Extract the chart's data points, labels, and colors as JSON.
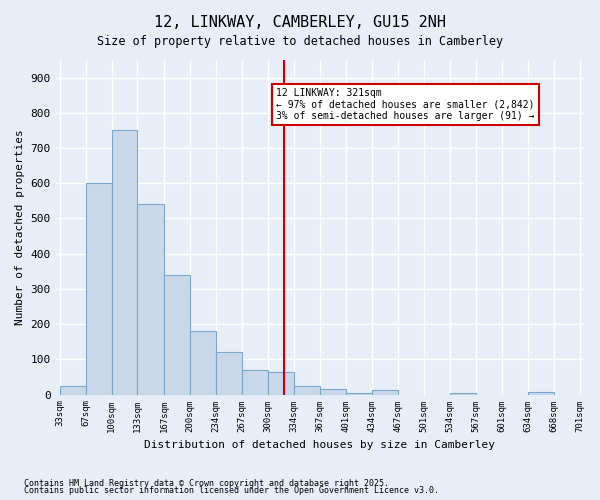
{
  "title": "12, LINKWAY, CAMBERLEY, GU15 2NH",
  "subtitle": "Size of property relative to detached houses in Camberley",
  "xlabel": "Distribution of detached houses by size in Camberley",
  "ylabel": "Number of detached properties",
  "footnote1": "Contains HM Land Registry data © Crown copyright and database right 2025.",
  "footnote2": "Contains public sector information licensed under the Open Government Licence v3.0.",
  "annotation_title": "12 LINKWAY: 321sqm",
  "annotation_line1": "← 97% of detached houses are smaller (2,842)",
  "annotation_line2": "3% of semi-detached houses are larger (91) →",
  "property_size": 321,
  "bar_edges": [
    33,
    67,
    100,
    133,
    167,
    200,
    234,
    267,
    300,
    334,
    367,
    401,
    434,
    467,
    501,
    534,
    567,
    601,
    634,
    668,
    701
  ],
  "bar_heights": [
    25,
    600,
    750,
    540,
    340,
    180,
    120,
    70,
    65,
    25,
    15,
    5,
    13,
    0,
    0,
    5,
    0,
    0,
    7,
    0
  ],
  "bar_color": "#c8d8e8",
  "bar_edge_color": "#7aa8cc",
  "vline_color": "#cc0000",
  "annotation_box_color": "#cc0000",
  "bg_color": "#e8eef8",
  "grid_color": "#ffffff",
  "ylim": [
    0,
    950
  ],
  "yticks": [
    0,
    100,
    200,
    300,
    400,
    500,
    600,
    700,
    800,
    900
  ]
}
